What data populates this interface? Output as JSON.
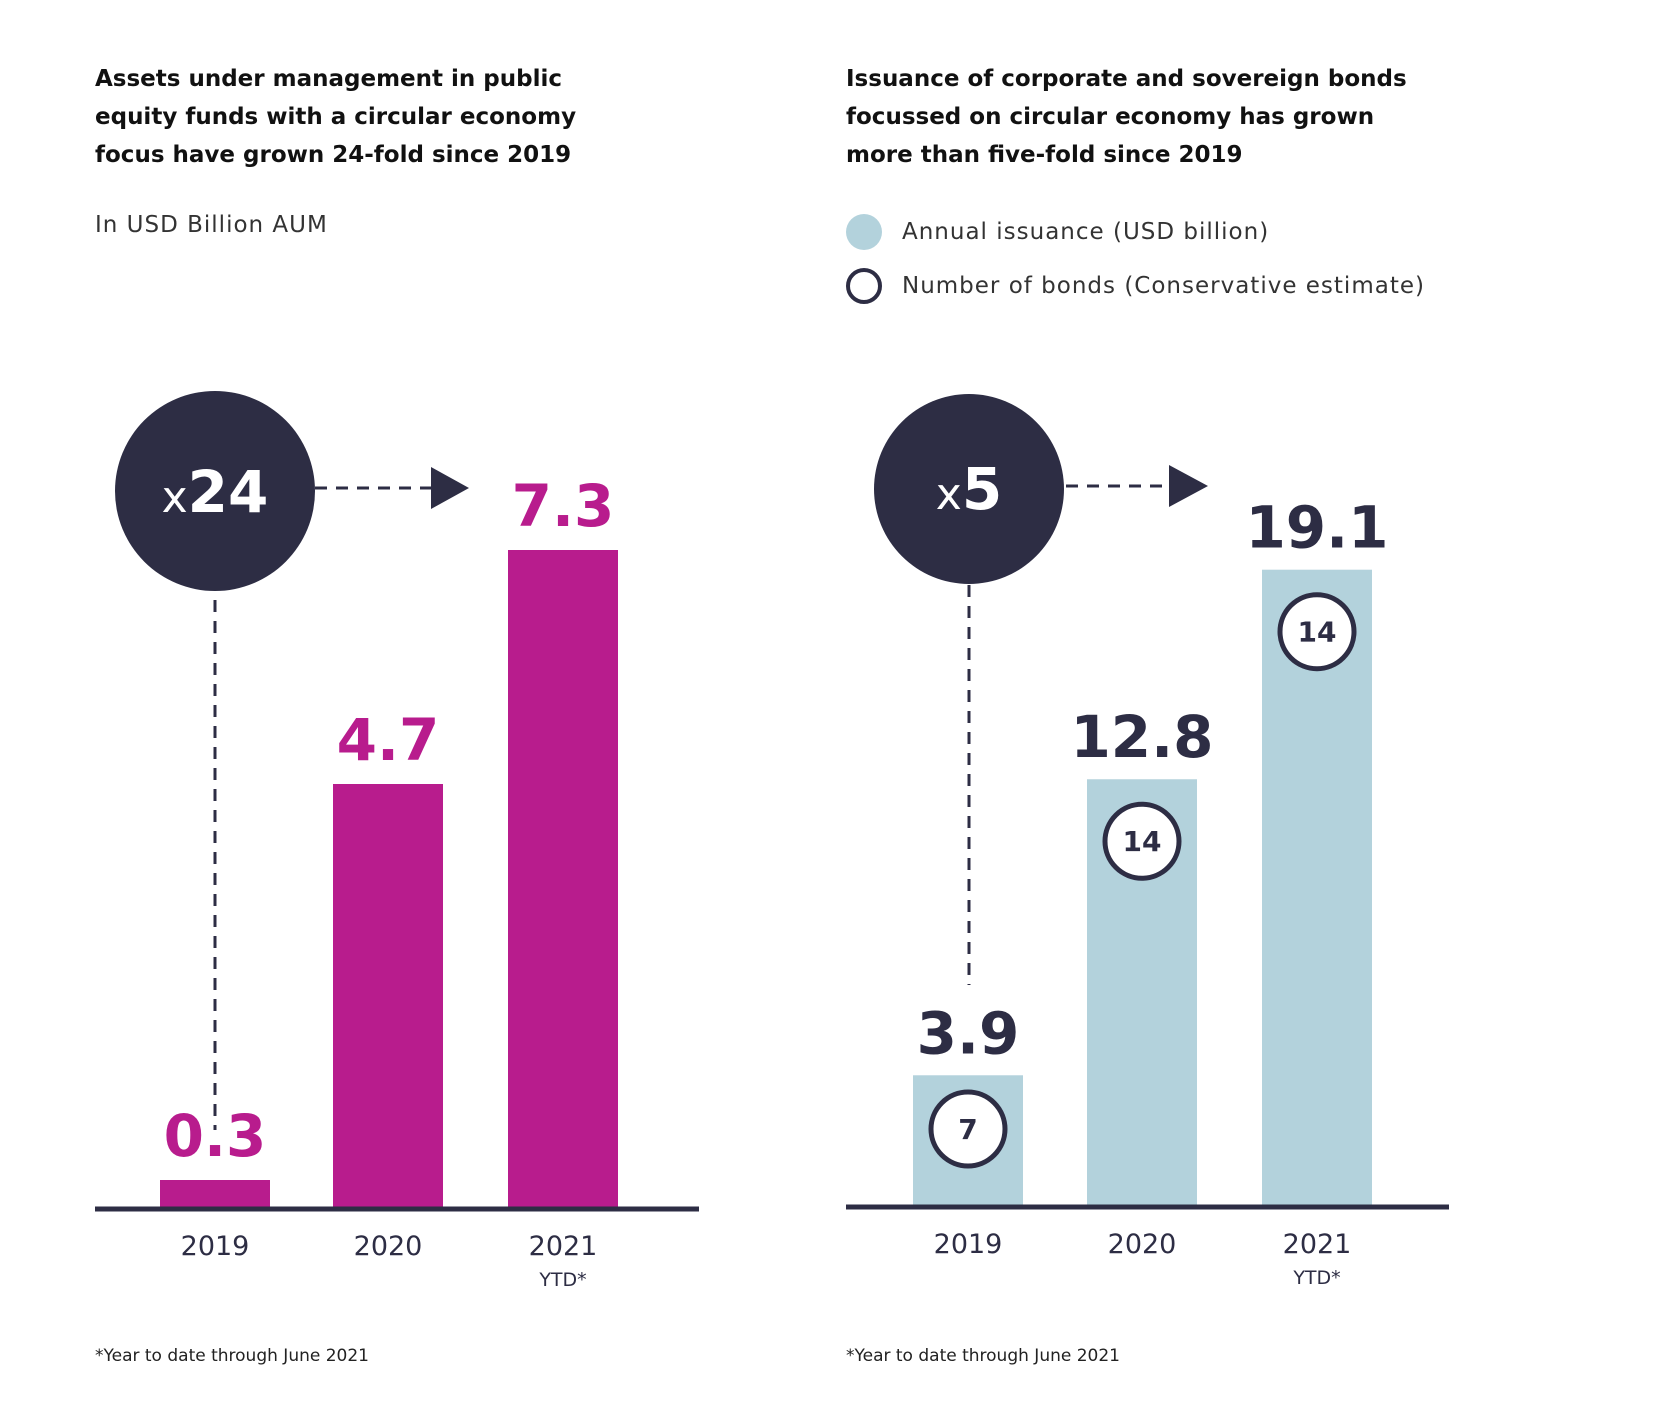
{
  "charts": {
    "left": {
      "title_lines": [
        "Assets under management in public",
        "equity funds with a circular economy",
        "focus have grown 24-fold since 2019"
      ],
      "subtitle": "In USD Billion AUM",
      "multiplier_prefix": "x",
      "multiplier_value": "24",
      "footnote": "*Year to date through June 2021"
    },
    "right": {
      "title_lines": [
        "Issuance of corporate and sovereign bonds",
        "focussed on circular economy has grown",
        "more than five-fold since 2019"
      ],
      "legend": [
        {
          "label": "Annual issuance (USD billion)",
          "marker": "filled-circle"
        },
        {
          "label": "Number of bonds (Conservative estimate)",
          "marker": "ring"
        }
      ],
      "multiplier_prefix": "x",
      "multiplier_value": "5",
      "footnote": "*Year to date through June 2021"
    }
  },
  "colors": {
    "magenta": "#b81c8d",
    "light_blue": "#b3d2dc",
    "navy": "#2d2d44"
  },
  "chart_data": [
    {
      "type": "bar",
      "title": "Assets under management in public equity funds with a circular economy focus have grown 24-fold since 2019",
      "ylabel": "In USD Billion AUM",
      "categories": [
        "2019",
        "2020",
        "2021"
      ],
      "category_sublabels": [
        "",
        "",
        "YTD*"
      ],
      "values": [
        0.3,
        4.7,
        7.3
      ],
      "value_labels": [
        "0.3",
        "4.7",
        "7.3"
      ],
      "ylim": [
        0,
        8
      ],
      "grid": false,
      "annotation": "x24"
    },
    {
      "type": "bar",
      "title": "Issuance of corporate and sovereign bonds focussed on circular economy has grown more than five-fold since 2019",
      "categories": [
        "2019",
        "2020",
        "2021"
      ],
      "category_sublabels": [
        "",
        "",
        "YTD*"
      ],
      "series": [
        {
          "name": "Annual issuance (USD billion)",
          "values": [
            3.9,
            12.8,
            19.1
          ],
          "value_labels": [
            "3.9",
            "12.8",
            "19.1"
          ]
        },
        {
          "name": "Number of bonds (Conservative estimate)",
          "values": [
            7,
            14,
            14
          ]
        }
      ],
      "ylim": [
        0,
        21
      ],
      "grid": false,
      "legend": "top-left",
      "annotation": "x5"
    }
  ]
}
